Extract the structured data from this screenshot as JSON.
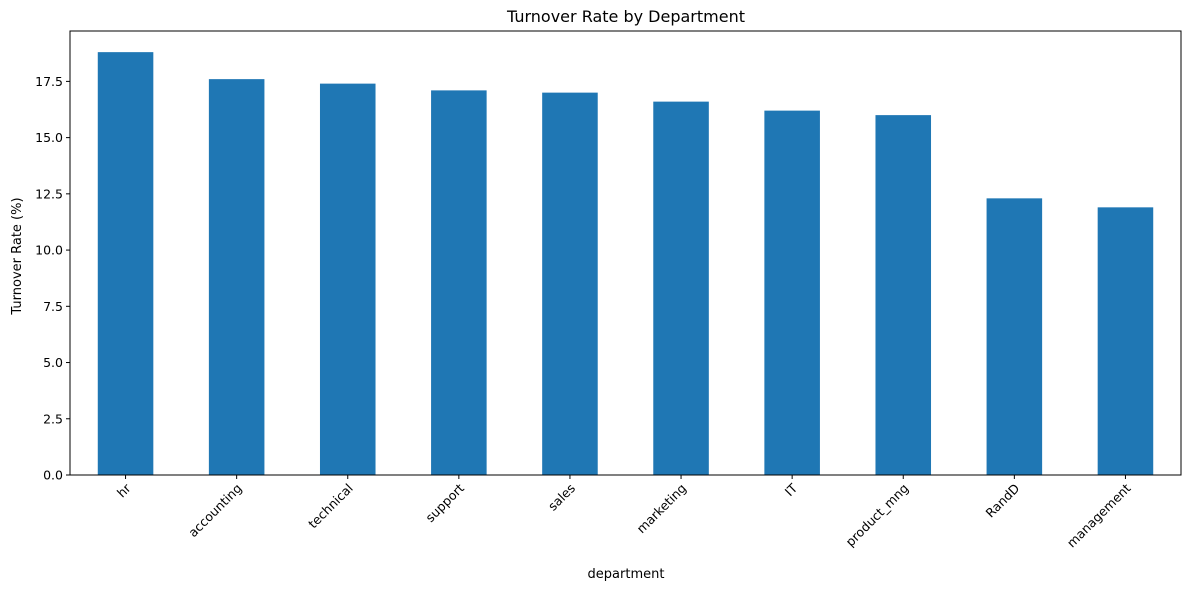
{
  "chart_data": {
    "type": "bar",
    "title": "Turnover Rate by Department",
    "xlabel": "department",
    "ylabel": "Turnover Rate (%)",
    "categories": [
      "hr",
      "accounting",
      "technical",
      "support",
      "sales",
      "marketing",
      "IT",
      "product_mng",
      "RandD",
      "management"
    ],
    "values": [
      18.8,
      17.6,
      17.4,
      17.1,
      17.0,
      16.6,
      16.2,
      16.0,
      12.3,
      11.9
    ],
    "ylim": [
      0,
      19.74
    ],
    "yticks": [
      0.0,
      2.5,
      5.0,
      7.5,
      10.0,
      12.5,
      15.0,
      17.5
    ],
    "ytick_labels": [
      "0.0",
      "2.5",
      "5.0",
      "7.5",
      "10.0",
      "12.5",
      "15.0",
      "17.5"
    ],
    "bar_color": "#1f77b4",
    "grid": false,
    "legend": "none",
    "xtick_rotation": 45
  }
}
